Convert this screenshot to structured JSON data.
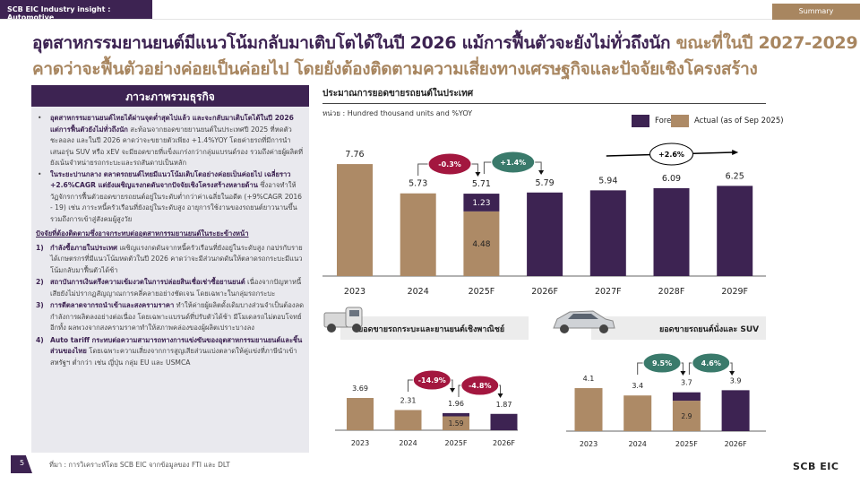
{
  "header": {
    "breadcrumb": "SCB EIC Industry insight : Automotive",
    "section_tab": "Summary"
  },
  "title": {
    "line1_part1": "อุตสาหกรรมยานยนต์มีแนวโน้มกลับมาเติบโตได้ในปี 2026 แม้การฟื้นตัวจะยังไม่ทั่วถึงนัก ",
    "line1_part2": "ขณะที่ในปี 2027-2029",
    "line2": "คาดว่าจะฟื้นตัวอย่างค่อยเป็นค่อยไป โดยยังต้องติดตามความเสี่ยงทางเศรษฐกิจและปัจจัยเชิงโครงสร้าง"
  },
  "panel": {
    "heading": "ภาวะภาพรวมธุรกิจ",
    "bullets": [
      {
        "bold": "อุตสาหกรรมยานยนต์ไทยได้ผ่านจุดต่ำสุดไปแล้ว และจะกลับมาเติบโตได้ในปี 2026 แต่การฟื้นตัวยังไม่ทั่วถึงนัก",
        "text": " สะท้อนจากยอดขายยานยนต์ในประเทศปี 2025 ที่หดตัวชะลอลง และในปี 2026 คาดว่าจะขยายตัวเพียง +1.4%YOY โดยค่ายรถที่มีการนำเสนอรุ่น SUV หรือ xEV จะมียอดขายที่แข็งแกร่งกว่ากลุ่มแบรนด์รอง รวมถึงค่ายผู้ผลิตที่ยังเน้นจำหน่ายรถกระบะและรถสันดาปเป็นหลัก"
      },
      {
        "bold": "ในระยะปานกลาง ตลาดรถยนต์ไทยมีแนวโน้มเติบโตอย่างค่อยเป็นค่อยไป เฉลี่ยราว +2.6%CAGR แต่ยังเผชิญแรงกดดันจากปัจจัยเชิงโครงสร้างหลายด้าน",
        "text": " ซึ่งอาจทำให้วัฏจักรการฟื้นตัวยอดขายรถยนต์อยู่ในระดับต่ำกว่าค่าเฉลี่ยในอดีต (+9%CAGR 2016 - 19) เช่น ภาระหนี้ครัวเรือนที่ยังอยู่ในระดับสูง อายุการใช้งานของรถยนต์ยาวนานขึ้น รวมถึงการเข้าสู่สังคมผู้สูงวัย"
      }
    ],
    "risk_heading": "ปัจจัยที่ต้องติดตามซึ่งอาจกระทบต่ออุตสาหกรรมยานยนต์ในระยะข้างหน้า",
    "risks": [
      {
        "num": "1)",
        "bold": "กำลังซื้อภายในประเทศ",
        "text": " เผชิญแรงกดดันจากหนี้ครัวเรือนที่ยังอยู่ในระดับสูง กอปรกับรายได้เกษตรกรที่มีแนวโน้มหดตัวในปี 2026 คาดว่าจะมีส่วนกดดันให้ตลาดรถกระบะมีแนวโน้มกลับมาฟื้นตัวได้ช้า"
      },
      {
        "num": "2)",
        "bold": "สถาบันการเงินตรึงความเข้มงวดในการปล่อยสินเชื่อเช่าซื้อยานยนต์",
        "text": " เนื่องจากปัญหาหนี้เสียยังไม่ปรากฏสัญญาณการคลี่คลายอย่างชัดเจน โดยเฉพาะในกลุ่มรถกระบะ"
      },
      {
        "num": "3)",
        "bold": "การตีตลาดจากรถนำเข้าและสงครามราคา",
        "text": " ทำให้ค่ายผู้ผลิตดั้งเดิมบางส่วนจำเป็นต้องลดกำลังการผลิตลงอย่างต่อเนื่อง โดยเฉพาะแบรนด์ที่ปรับตัวได้ช้า มีโมเดลรถไม่ตอบโจทย์ อีกทั้ง ผลพวงจากสงครามราคาทำให้สภาพคล่องของผู้ผลิตเปราะบางลง"
      },
      {
        "num": "4)",
        "bold": "Auto tariff กระทบต่อความสามารถทางการแข่งขันของอุตสาหกรรมยานยนต์และชิ้นส่วนของไทย",
        "text": " โดยเฉพาะความเสี่ยงจากการสูญเสียส่วนแบ่งตลาดให้คู่แข่งที่ภาษีนำเข้าสหรัฐฯ ต่ำกว่า เช่น ญี่ปุ่น กลุ่ม EU และ USMCA"
      }
    ]
  },
  "colors": {
    "forecast": "#3d2352",
    "actual": "#ad8a66",
    "negative": "#a3173f",
    "positive": "#3a7a6b",
    "title_accent": "#a88660"
  },
  "legend": {
    "forecast": "Forecast",
    "actual": "Actual (as of Sep 2025)"
  },
  "chart_data": [
    {
      "type": "bar",
      "stacked": true,
      "title": "ประมาณการยอดขายรถยนต์ในประเทศ",
      "unit": "หน่วย : Hundred thousand units and %YOY",
      "categories": [
        "2023",
        "2024",
        "2025F",
        "2026F",
        "2027F",
        "2028F",
        "2029F"
      ],
      "series": [
        {
          "name": "Actual (as of Sep 2025)",
          "values": [
            7.76,
            5.73,
            4.48,
            null,
            null,
            null,
            null
          ]
        },
        {
          "name": "Forecast",
          "values": [
            null,
            null,
            1.23,
            5.79,
            5.94,
            6.09,
            6.25
          ]
        }
      ],
      "total_labels": [
        "7.76",
        "5.73",
        "5.71",
        "5.79",
        "5.94",
        "6.09",
        "6.25"
      ],
      "segment_labels": [
        {
          "category": "2025F",
          "actual": "4.48",
          "forecast": "1.23"
        }
      ],
      "annotations": [
        {
          "from": "2024",
          "to": "2025F",
          "label": "-0.3%",
          "tone": "negative"
        },
        {
          "from": "2025F",
          "to": "2026F",
          "label": "+1.4%",
          "tone": "positive"
        },
        {
          "from": "2027F",
          "to": "2029F",
          "label": "+2.6%",
          "tone": "neutral"
        }
      ],
      "legend": "top-right",
      "grid": false
    },
    {
      "type": "bar",
      "stacked": true,
      "title": "ยอดขายรถกระบะและยานยนต์เชิงพาณิชย์",
      "categories": [
        "2023",
        "2024",
        "2025F",
        "2026F"
      ],
      "series": [
        {
          "name": "Actual (as of Sep 2025)",
          "values": [
            3.69,
            2.31,
            1.59,
            null
          ]
        },
        {
          "name": "Forecast",
          "values": [
            null,
            null,
            0.37,
            1.87
          ]
        }
      ],
      "total_labels": [
        "3.69",
        "2.31",
        "1.96",
        "1.87"
      ],
      "segment_labels": [
        {
          "category": "2025F",
          "actual": "1.59"
        }
      ],
      "annotations": [
        {
          "from": "2024",
          "to": "2025F",
          "label": "-14.9%",
          "tone": "negative"
        },
        {
          "from": "2025F",
          "to": "2026F",
          "label": "-4.8%",
          "tone": "negative"
        }
      ],
      "grid": false
    },
    {
      "type": "bar",
      "stacked": true,
      "title": "ยอดขายรถยนต์นั่งและ SUV",
      "categories": [
        "2023",
        "2024",
        "2025F",
        "2026F"
      ],
      "series": [
        {
          "name": "Actual (as of Sep 2025)",
          "values": [
            4.1,
            3.4,
            2.9,
            null
          ]
        },
        {
          "name": "Forecast",
          "values": [
            null,
            null,
            0.8,
            3.9
          ]
        }
      ],
      "total_labels": [
        "4.1",
        "3.4",
        "3.7",
        "3.9"
      ],
      "segment_labels": [
        {
          "category": "2025F",
          "actual": "2.9"
        }
      ],
      "annotations": [
        {
          "from": "2024",
          "to": "2025F",
          "label": "9.5%",
          "tone": "positive"
        },
        {
          "from": "2025F",
          "to": "2026F",
          "label": "4.6%",
          "tone": "positive"
        }
      ],
      "grid": false
    }
  ],
  "footer": {
    "page": "5",
    "source": "ที่มา : การวิเคราะห์โดย SCB EIC จากข้อมูลของ FTI และ DLT",
    "logo": "SCB EIC"
  }
}
